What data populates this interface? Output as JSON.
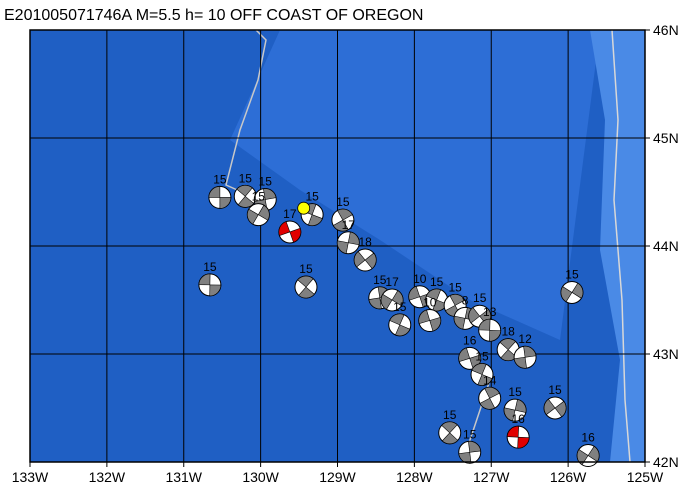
{
  "title": "E201005071746A M=5.5 h= 10 OFF COAST OF OREGON",
  "map": {
    "xlim": [
      -133,
      -125
    ],
    "ylim": [
      42,
      46
    ],
    "xticks": [
      {
        "value": -133,
        "label": "133W"
      },
      {
        "value": -132,
        "label": "132W"
      },
      {
        "value": -131,
        "label": "131W"
      },
      {
        "value": -130,
        "label": "130W"
      },
      {
        "value": -129,
        "label": "129W"
      },
      {
        "value": -128,
        "label": "128W"
      },
      {
        "value": -127,
        "label": "127W"
      },
      {
        "value": -126,
        "label": "126W"
      },
      {
        "value": -125,
        "label": "125W"
      }
    ],
    "yticks": [
      {
        "value": 42,
        "label": "42N"
      },
      {
        "value": 43,
        "label": "43N"
      },
      {
        "value": 44,
        "label": "44N"
      },
      {
        "value": 45,
        "label": "45N"
      },
      {
        "value": 46,
        "label": "46N"
      }
    ],
    "epicenter": {
      "lon": -129.44,
      "lat": 44.35,
      "color": "#ffff00"
    },
    "events": [
      {
        "lon": -130.53,
        "lat": 44.45,
        "label": "15",
        "color": "#808080"
      },
      {
        "lon": -130.2,
        "lat": 44.46,
        "label": "15",
        "color": "#808080"
      },
      {
        "lon": -129.94,
        "lat": 44.43,
        "label": "15",
        "color": "#808080"
      },
      {
        "lon": -130.03,
        "lat": 44.29,
        "label": "15",
        "color": "#808080"
      },
      {
        "lon": -129.62,
        "lat": 44.13,
        "label": "17",
        "color": "#e00000"
      },
      {
        "lon": -129.33,
        "lat": 44.29,
        "label": "15",
        "color": "#808080"
      },
      {
        "lon": -128.93,
        "lat": 44.24,
        "label": "15",
        "color": "#808080"
      },
      {
        "lon": -128.86,
        "lat": 44.03,
        "label": "17",
        "color": "#808080"
      },
      {
        "lon": -128.64,
        "lat": 43.87,
        "label": "18",
        "color": "#808080"
      },
      {
        "lon": -130.66,
        "lat": 43.64,
        "label": "15",
        "color": "#808080"
      },
      {
        "lon": -129.41,
        "lat": 43.62,
        "label": "15",
        "color": "#808080"
      },
      {
        "lon": -128.45,
        "lat": 43.52,
        "label": "15",
        "color": "#808080"
      },
      {
        "lon": -128.29,
        "lat": 43.5,
        "label": "17",
        "color": "#808080"
      },
      {
        "lon": -127.93,
        "lat": 43.53,
        "label": "10",
        "color": "#808080"
      },
      {
        "lon": -127.71,
        "lat": 43.5,
        "label": "15",
        "color": "#808080"
      },
      {
        "lon": -127.47,
        "lat": 43.45,
        "label": "15",
        "color": "#808080"
      },
      {
        "lon": -127.34,
        "lat": 43.33,
        "label": "8",
        "color": "#808080"
      },
      {
        "lon": -127.15,
        "lat": 43.35,
        "label": "15",
        "color": "#808080"
      },
      {
        "lon": -127.02,
        "lat": 43.22,
        "label": "13",
        "color": "#808080"
      },
      {
        "lon": -126.78,
        "lat": 43.04,
        "label": "18",
        "color": "#808080"
      },
      {
        "lon": -126.56,
        "lat": 42.97,
        "label": "12",
        "color": "#808080"
      },
      {
        "lon": -125.95,
        "lat": 43.57,
        "label": "15",
        "color": "#808080"
      },
      {
        "lon": -127.28,
        "lat": 42.96,
        "label": "16",
        "color": "#808080"
      },
      {
        "lon": -127.12,
        "lat": 42.81,
        "label": "15",
        "color": "#808080"
      },
      {
        "lon": -127.02,
        "lat": 42.59,
        "label": "14",
        "color": "#808080"
      },
      {
        "lon": -126.69,
        "lat": 42.48,
        "label": "15",
        "color": "#808080"
      },
      {
        "lon": -126.17,
        "lat": 42.5,
        "label": "15",
        "color": "#808080"
      },
      {
        "lon": -126.65,
        "lat": 42.23,
        "label": "16",
        "color": "#e00000"
      },
      {
        "lon": -127.54,
        "lat": 42.27,
        "label": "15",
        "color": "#808080"
      },
      {
        "lon": -127.28,
        "lat": 42.09,
        "label": "15",
        "color": "#808080"
      },
      {
        "lon": -125.74,
        "lat": 42.06,
        "label": "16",
        "color": "#808080"
      },
      {
        "lon": -127.8,
        "lat": 43.31,
        "label": "10",
        "color": "#808080"
      },
      {
        "lon": -128.19,
        "lat": 43.27,
        "label": "15",
        "color": "#808080"
      }
    ]
  }
}
